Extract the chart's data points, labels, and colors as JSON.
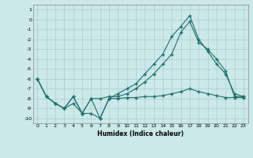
{
  "xlabel": "Humidex (Indice chaleur)",
  "xlim": [
    -0.5,
    23.5
  ],
  "ylim": [
    -10.5,
    1.5
  ],
  "yticks": [
    1,
    0,
    -1,
    -2,
    -3,
    -4,
    -5,
    -6,
    -7,
    -8,
    -9,
    -10
  ],
  "xticks": [
    0,
    1,
    2,
    3,
    4,
    5,
    6,
    7,
    8,
    9,
    10,
    11,
    12,
    13,
    14,
    15,
    16,
    17,
    18,
    19,
    20,
    21,
    22,
    23
  ],
  "background_color": "#cce8e8",
  "grid_color": "#aacccc",
  "line_color": "#1e6e6e",
  "lines": [
    {
      "x": [
        0,
        1,
        2,
        3,
        4,
        5,
        6,
        7,
        8,
        9,
        10,
        11,
        12,
        13,
        14,
        15,
        16,
        17,
        18,
        19,
        20,
        21,
        22,
        23
      ],
      "y": [
        -6.0,
        -7.8,
        -8.5,
        -9.0,
        -7.8,
        -9.5,
        -8.0,
        -10.0,
        -8.0,
        -7.5,
        -7.0,
        -6.5,
        -5.5,
        -4.5,
        -3.5,
        -1.7,
        -0.7,
        0.4,
        -2.0,
        -3.2,
        -4.5,
        -5.5,
        -7.5,
        -7.8
      ]
    },
    {
      "x": [
        0,
        1,
        2,
        3,
        4,
        5,
        6,
        7,
        8,
        9,
        10,
        11,
        12,
        13,
        14,
        15,
        16,
        17,
        18,
        19,
        20,
        21,
        22,
        23
      ],
      "y": [
        -6.0,
        -7.8,
        -8.5,
        -9.0,
        -7.8,
        -9.5,
        -8.0,
        -8.0,
        -7.8,
        -7.8,
        -7.5,
        -7.0,
        -6.3,
        -5.5,
        -4.5,
        -3.5,
        -1.3,
        -0.2,
        -2.3,
        -3.0,
        -4.0,
        -5.2,
        -7.8,
        -7.8
      ]
    },
    {
      "x": [
        0,
        1,
        2,
        3,
        4,
        5,
        6,
        7,
        8,
        9,
        10,
        11,
        12,
        13,
        14,
        15,
        16,
        17,
        18,
        19,
        20,
        21,
        22,
        23
      ],
      "y": [
        -6.0,
        -7.8,
        -8.5,
        -9.0,
        -8.5,
        -9.5,
        -9.5,
        -10.0,
        -8.0,
        -8.0,
        -7.9,
        -7.9,
        -7.8,
        -7.8,
        -7.7,
        -7.5,
        -7.3,
        -7.0,
        -7.3,
        -7.5,
        -7.7,
        -7.9,
        -7.9,
        -7.9
      ]
    }
  ]
}
